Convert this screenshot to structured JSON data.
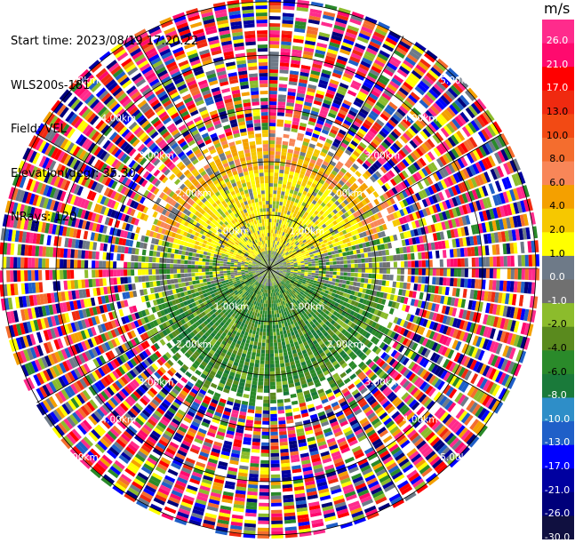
{
  "info": {
    "start_time": "Start time: 2023/08/19 17:20:22",
    "site": "WLS200s-181",
    "field": "Field: VEL",
    "elevation": "Elevation(deg): 35.30",
    "nrays": "NRays: 120"
  },
  "colorbar": {
    "unit": "m/s",
    "ticks": [
      "26.0",
      "21.0",
      "17.0",
      "13.0",
      "10.0",
      "8.0",
      "6.0",
      "4.0",
      "2.0",
      "1.0",
      "0.0",
      "-1.0",
      "-2.0",
      "-4.0",
      "-6.0",
      "-8.0",
      "-10.0",
      "-13.0",
      "-17.0",
      "-21.0",
      "-26.0",
      "-30.0"
    ],
    "colors": [
      "#ff2b8c",
      "#ff0a6e",
      "#ff0000",
      "#f02a10",
      "#f24a14",
      "#f46d2e",
      "#f88658",
      "#f4a000",
      "#f6c800",
      "#ffff00",
      "#6e7a88",
      "#707070",
      "#8cbc2c",
      "#5a8a1e",
      "#2a8a2a",
      "#1a7a3a",
      "#2e8ec8",
      "#1f5fc8",
      "#0000ff",
      "#0000a0",
      "#00007a",
      "#101040"
    ]
  },
  "chart_data": {
    "type": "ppi",
    "field": "VEL",
    "units": "m/s",
    "nrays": 120,
    "elevation_deg": 35.3,
    "range_rings": [
      "1.00km",
      "2.00km",
      "3.00km",
      "4.00km",
      "5.00km"
    ],
    "clim": [
      -30.0,
      26.0
    ],
    "data_extent_km": 2.6,
    "near_field_pattern": "north sector positive (yellow/orange), south sector negative (green), noisy/random values beyond ~2.6 km"
  }
}
